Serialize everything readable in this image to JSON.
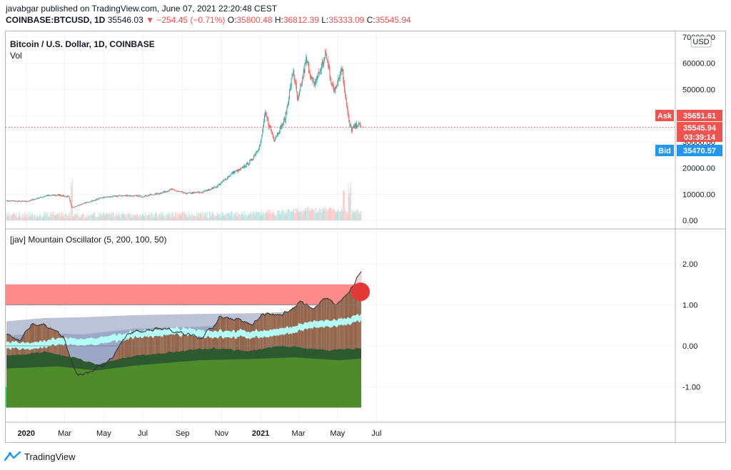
{
  "header": {
    "published_line": "javabgar published on TradingView.com, June 07, 2021 22:20:48 CEST",
    "symbol": "COINBASE:BTCUSD, 1D",
    "last": "35546.03",
    "change": "−254.45 (−0.71%)",
    "o_label": "O:",
    "o_value": "35800.48",
    "h_label": "H:",
    "h_value": "36812.39",
    "l_label": "L:",
    "l_value": "35333.09",
    "c_label": "C:",
    "c_value": "35545.94"
  },
  "price_pane": {
    "title": "Bitcoin / U.S. Dollar, 1D, COINBASE",
    "vol_label": "Vol",
    "currency": "USD",
    "ask_label": "Ask",
    "ask_value": "35651.61",
    "last_value": "35545.94",
    "countdown": "03:39:14",
    "bid_label": "Bid",
    "bid_value": "35470.57"
  },
  "osc_pane": {
    "title": "[jav] Mountain Oscillator (5, 200, 100, 50)"
  },
  "footer": {
    "brand": "TradingView"
  },
  "colors": {
    "up": "#26a69a",
    "down": "#ef5350",
    "ask": "#ef5350",
    "bid": "#2196f3",
    "band_red": "#ff8a8a",
    "band_green": "#2fc46a",
    "sky": "#9aa6c4",
    "brown": "#8c5e45",
    "cyan": "#b2fff7",
    "dark_green": "#2c5a2e",
    "green": "#4f8a2b"
  },
  "chart_data": [
    {
      "type": "candlestick",
      "title": "Bitcoin / U.S. Dollar, 1D, COINBASE",
      "x_ticks": [
        "2020",
        "Mar",
        "May",
        "Jul",
        "Sep",
        "Nov",
        "2021",
        "Mar",
        "May",
        "Jul"
      ],
      "y_ticks": [
        "0.00",
        "10000.00",
        "20000.00",
        "30000.00",
        "40000.00",
        "50000.00",
        "60000.00",
        "70000.00"
      ],
      "ylim": [
        0,
        70000
      ],
      "y_unit": "USD",
      "close_path": [
        [
          "2019-12-01",
          7500
        ],
        [
          "2020-01-01",
          7200
        ],
        [
          "2020-02-01",
          9400
        ],
        [
          "2020-02-20",
          9700
        ],
        [
          "2020-03-07",
          9000
        ],
        [
          "2020-03-12",
          5000
        ],
        [
          "2020-03-18",
          5300
        ],
        [
          "2020-04-01",
          6600
        ],
        [
          "2020-05-01",
          8800
        ],
        [
          "2020-06-01",
          9500
        ],
        [
          "2020-07-01",
          9200
        ],
        [
          "2020-07-25",
          10200
        ],
        [
          "2020-08-15",
          11800
        ],
        [
          "2020-09-05",
          10300
        ],
        [
          "2020-10-01",
          10700
        ],
        [
          "2020-10-25",
          13000
        ],
        [
          "2020-11-20",
          18500
        ],
        [
          "2020-12-01",
          19400
        ],
        [
          "2020-12-17",
          22800
        ],
        [
          "2021-01-01",
          29300
        ],
        [
          "2021-01-08",
          40700
        ],
        [
          "2021-01-22",
          31000
        ],
        [
          "2021-02-08",
          38500
        ],
        [
          "2021-02-21",
          57500
        ],
        [
          "2021-02-28",
          45200
        ],
        [
          "2021-03-13",
          61200
        ],
        [
          "2021-03-25",
          51300
        ],
        [
          "2021-04-13",
          63400
        ],
        [
          "2021-04-25",
          49000
        ],
        [
          "2021-05-08",
          58500
        ],
        [
          "2021-05-19",
          37000
        ],
        [
          "2021-05-23",
          34800
        ],
        [
          "2021-06-01",
          36600
        ],
        [
          "2021-06-07",
          35546
        ]
      ],
      "current_value": 35545.94
    },
    {
      "type": "area",
      "title": "[jav] Mountain Oscillator (5, 200, 100, 50)",
      "y_ticks": [
        "-1.00",
        "0.00",
        "1.00",
        "2.00"
      ],
      "ylim": [
        -1.5,
        2.4
      ],
      "overbought_band": [
        1.0,
        1.5
      ],
      "oversold_band": [
        -1.5,
        -1.0
      ],
      "oscillator_peak": 2.4,
      "oscillator_trough": -0.72
    }
  ]
}
